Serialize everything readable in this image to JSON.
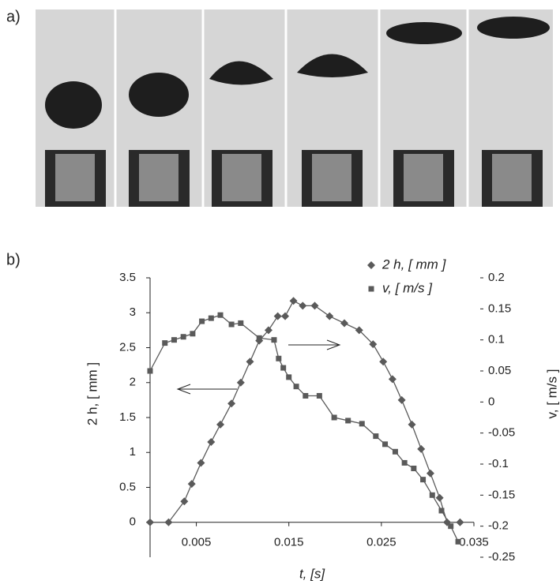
{
  "panel_a_label": "a)",
  "chart_data": {
    "type": "line",
    "label": "b)",
    "x_label": "t, [s]",
    "y_label": "2 h, [ mm ]",
    "y2_label": "v, [ m/s ]",
    "xlim": [
      0,
      0.035
    ],
    "xticks": [
      0.005,
      0.015,
      0.025,
      0.035
    ],
    "ylim": [
      -0.5,
      3.5
    ],
    "yticks": [
      0,
      0.5,
      1,
      1.5,
      2,
      2.5,
      3,
      3.5
    ],
    "y2lim": [
      -0.25,
      0.2
    ],
    "y2ticks": [
      0.2,
      0.15,
      0.1,
      0.05,
      0,
      -0.05,
      -0.1,
      -0.15,
      -0.2,
      -0.25
    ],
    "series": [
      {
        "name": "2 h, [ mm ]",
        "color": "#5a5a5a",
        "marker": "diamond",
        "x": [
          0,
          0.002,
          0.0037,
          0.0045,
          0.0055,
          0.0066,
          0.0076,
          0.0088,
          0.0098,
          0.0108,
          0.0118,
          0.0128,
          0.0138,
          0.0146,
          0.0155,
          0.0165,
          0.0178,
          0.0194,
          0.021,
          0.0226,
          0.0241,
          0.0252,
          0.0262,
          0.0272,
          0.0283,
          0.0293,
          0.0303,
          0.0313,
          0.0321,
          0.0335
        ],
        "values": [
          0,
          0,
          0.3,
          0.55,
          0.85,
          1.15,
          1.4,
          1.7,
          2.0,
          2.3,
          2.6,
          2.75,
          2.95,
          2.95,
          3.17,
          3.1,
          3.1,
          2.95,
          2.85,
          2.75,
          2.55,
          2.3,
          2.05,
          1.75,
          1.4,
          1.05,
          0.7,
          0.35,
          0.0,
          0.0
        ]
      },
      {
        "name": "v, [ m/s ]",
        "color": "#5a5a5a",
        "marker": "square",
        "axis": "y2",
        "x": [
          0,
          0.0016,
          0.0026,
          0.0036,
          0.0046,
          0.0056,
          0.0066,
          0.0076,
          0.0088,
          0.0098,
          0.0118,
          0.0134,
          0.0139,
          0.0144,
          0.015,
          0.0158,
          0.0168,
          0.0183,
          0.0199,
          0.0214,
          0.0229,
          0.0244,
          0.0254,
          0.0265,
          0.0275,
          0.0285,
          0.0295,
          0.0305,
          0.0315,
          0.0325,
          0.0333
        ],
        "values": [
          0.05,
          0.095,
          0.1,
          0.105,
          0.11,
          0.13,
          0.135,
          0.14,
          0.125,
          0.127,
          0.103,
          0.1,
          0.07,
          0.055,
          0.04,
          0.025,
          0.01,
          0.01,
          -0.025,
          -0.03,
          -0.035,
          -0.055,
          -0.068,
          -0.08,
          -0.098,
          -0.107,
          -0.125,
          -0.15,
          -0.175,
          -0.2,
          -0.225
        ]
      }
    ],
    "legend": "top-right"
  }
}
